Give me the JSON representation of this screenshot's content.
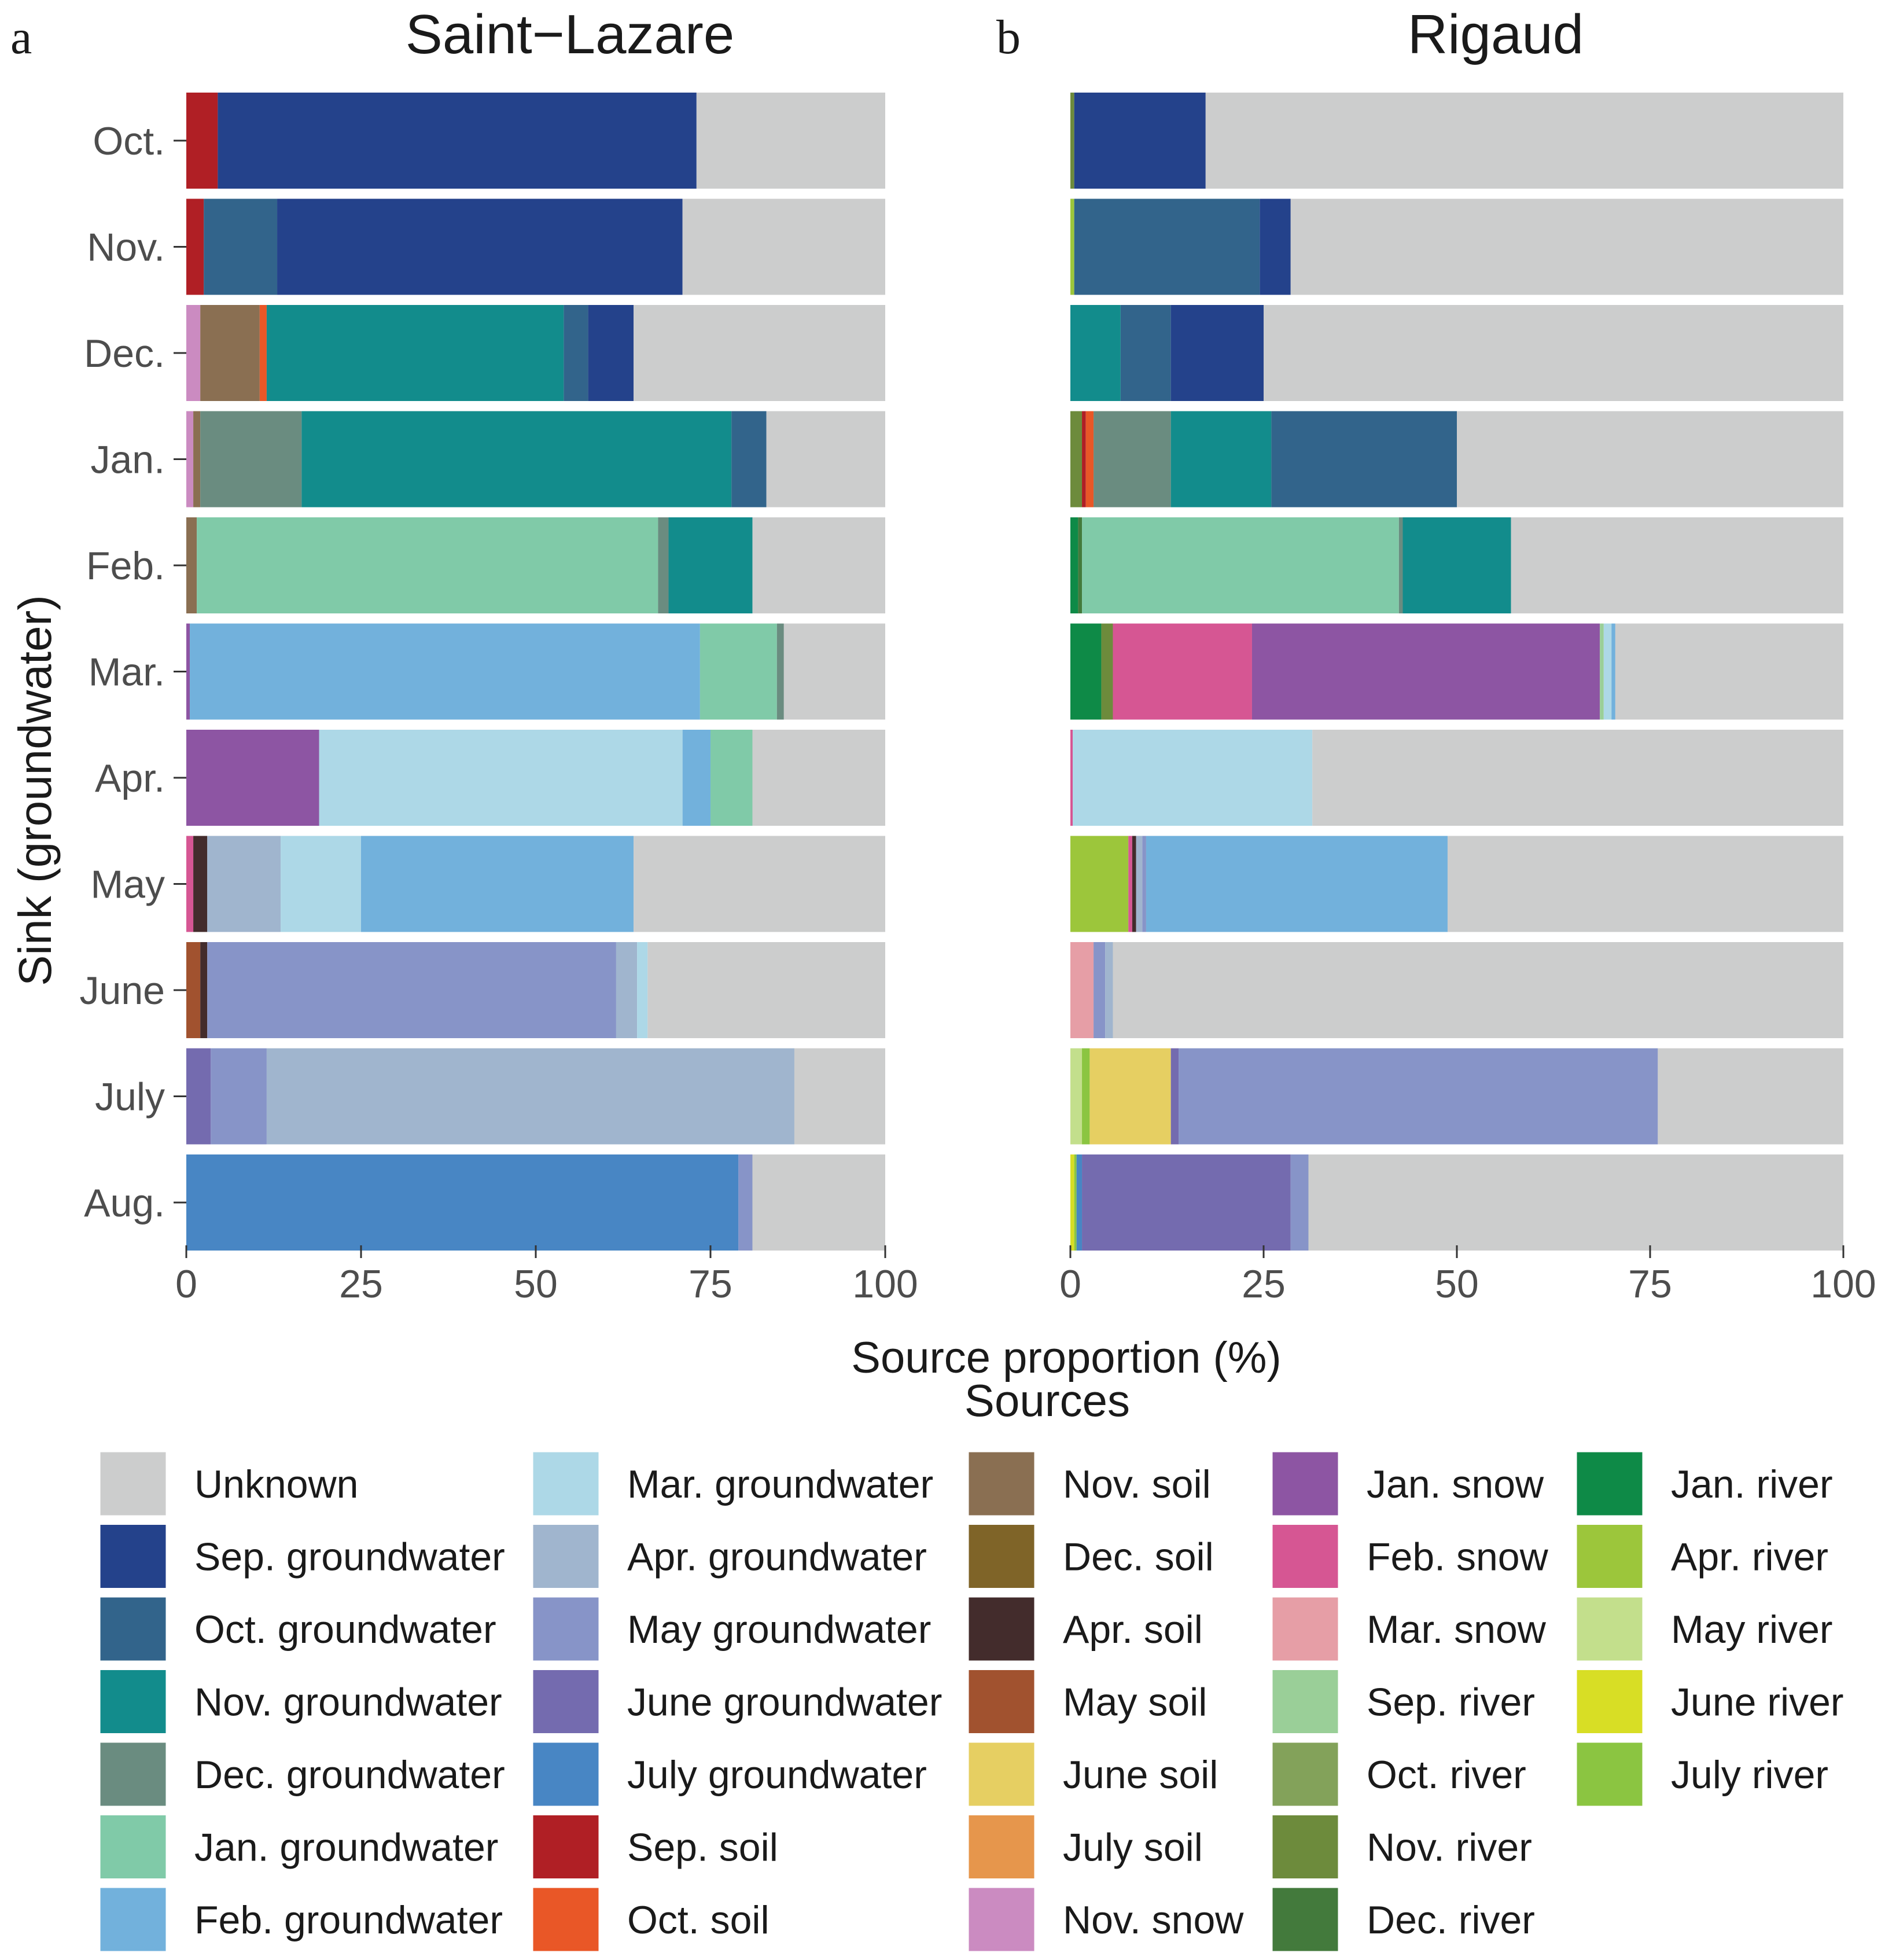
{
  "chart_data": {
    "type": "bar",
    "orientation": "horizontal",
    "stacked": true,
    "y_axis_label": "Sink (groundwater)",
    "x_axis_label": "Source proportion (%)",
    "xlim": [
      0,
      100
    ],
    "x_ticks": [
      "0",
      "25",
      "50",
      "75",
      "100"
    ],
    "categories": [
      "Oct.",
      "Nov.",
      "Dec.",
      "Jan.",
      "Feb.",
      "Mar.",
      "Apr.",
      "May",
      "June",
      "July",
      "Aug."
    ],
    "legend_title": "Sources",
    "legend_position": "bottom",
    "sources": [
      {
        "name": "Unknown",
        "color": "#CCCDCD"
      },
      {
        "name": "Sep. groundwater",
        "color": "#24428B"
      },
      {
        "name": "Oct. groundwater",
        "color": "#32648B"
      },
      {
        "name": "Nov. groundwater",
        "color": "#128C8C"
      },
      {
        "name": "Dec. groundwater",
        "color": "#6A8C80"
      },
      {
        "name": "Jan. groundwater",
        "color": "#80CAA8"
      },
      {
        "name": "Feb. groundwater",
        "color": "#72B1DC"
      },
      {
        "name": "Mar. groundwater",
        "color": "#ADD8E7"
      },
      {
        "name": "Apr. groundwater",
        "color": "#A0B5CE"
      },
      {
        "name": "May groundwater",
        "color": "#8794C8"
      },
      {
        "name": "June groundwater",
        "color": "#746BAF"
      },
      {
        "name": "July groundwater",
        "color": "#4886C4"
      },
      {
        "name": "Sep. soil",
        "color": "#B01F25"
      },
      {
        "name": "Oct. soil",
        "color": "#E95727"
      },
      {
        "name": "Nov. soil",
        "color": "#8A6F52"
      },
      {
        "name": "Dec. soil",
        "color": "#7F6428"
      },
      {
        "name": "Apr. soil",
        "color": "#432C2C"
      },
      {
        "name": "May soil",
        "color": "#A1522F"
      },
      {
        "name": "June soil",
        "color": "#E6CF62"
      },
      {
        "name": "July soil",
        "color": "#E6964C"
      },
      {
        "name": "Nov. snow",
        "color": "#CB8BC1"
      },
      {
        "name": "Jan. snow",
        "color": "#8D55A3"
      },
      {
        "name": "Feb. snow",
        "color": "#D65693"
      },
      {
        "name": "Mar. snow",
        "color": "#E69EA6"
      },
      {
        "name": "Sep. river",
        "color": "#9ACF98"
      },
      {
        "name": "Oct. river",
        "color": "#83A25A"
      },
      {
        "name": "Nov. river",
        "color": "#6D8B3C"
      },
      {
        "name": "Dec. river",
        "color": "#437A3C"
      },
      {
        "name": "Jan. river",
        "color": "#0E8A47"
      },
      {
        "name": "Apr. river",
        "color": "#9CC63B"
      },
      {
        "name": "May river",
        "color": "#C3DF8C"
      },
      {
        "name": "June river",
        "color": "#D8DE25"
      },
      {
        "name": "July river",
        "color": "#8BC541"
      }
    ],
    "panels": [
      {
        "letter": "a",
        "title": "Saint−Lazare",
        "bars": [
          [
            [
              "Sep. soil",
              4.5
            ],
            [
              "Sep. groundwater",
              68.5
            ],
            [
              "Unknown",
              27.0
            ]
          ],
          [
            [
              "Sep. soil",
              2.5
            ],
            [
              "Oct. groundwater",
              10.5
            ],
            [
              "Sep. groundwater",
              58.0
            ],
            [
              "Unknown",
              29.0
            ]
          ],
          [
            [
              "Nov. snow",
              2.0
            ],
            [
              "Nov. soil",
              8.5
            ],
            [
              "Oct. soil",
              1.0
            ],
            [
              "Nov. groundwater",
              42.5
            ],
            [
              "Oct. groundwater",
              3.5
            ],
            [
              "Sep. groundwater",
              6.5
            ],
            [
              "Unknown",
              36.0
            ]
          ],
          [
            [
              "Nov. snow",
              1.0
            ],
            [
              "Nov. soil",
              1.0
            ],
            [
              "Dec. groundwater",
              14.5
            ],
            [
              "Nov. groundwater",
              61.5
            ],
            [
              "Oct. groundwater",
              5.0
            ],
            [
              "Unknown",
              17.0
            ]
          ],
          [
            [
              "Nov. soil",
              1.5
            ],
            [
              "Jan. groundwater",
              66.0
            ],
            [
              "Dec. groundwater",
              1.5
            ],
            [
              "Nov. groundwater",
              12.0
            ],
            [
              "Unknown",
              19.0
            ]
          ],
          [
            [
              "Jan. snow",
              0.5
            ],
            [
              "Feb. groundwater",
              73.0
            ],
            [
              "Jan. groundwater",
              11.0
            ],
            [
              "Dec. groundwater",
              1.0
            ],
            [
              "Unknown",
              14.5
            ]
          ],
          [
            [
              "Jan. snow",
              19.0
            ],
            [
              "Mar. groundwater",
              52.0
            ],
            [
              "Feb. groundwater",
              4.0
            ],
            [
              "Jan. groundwater",
              6.0
            ],
            [
              "Unknown",
              19.0
            ]
          ],
          [
            [
              "Feb. snow",
              1.0
            ],
            [
              "Apr. soil",
              2.0
            ],
            [
              "Apr. groundwater",
              10.5
            ],
            [
              "Mar. groundwater",
              11.5
            ],
            [
              "Feb. groundwater",
              39.0
            ],
            [
              "Unknown",
              36.0
            ]
          ],
          [
            [
              "May soil",
              2.0
            ],
            [
              "Apr. soil",
              1.0
            ],
            [
              "May groundwater",
              58.5
            ],
            [
              "Apr. groundwater",
              3.0
            ],
            [
              "Mar. groundwater",
              1.5
            ],
            [
              "Unknown",
              34.0
            ]
          ],
          [
            [
              "June groundwater",
              3.5
            ],
            [
              "May groundwater",
              8.0
            ],
            [
              "Apr. groundwater",
              75.5
            ],
            [
              "Unknown",
              13.0
            ]
          ],
          [
            [
              "July groundwater",
              79.0
            ],
            [
              "May groundwater",
              2.0
            ],
            [
              "Unknown",
              19.0
            ]
          ]
        ]
      },
      {
        "letter": "b",
        "title": "Rigaud",
        "bars": [
          [
            [
              "Nov. river",
              0.5
            ],
            [
              "Sep. groundwater",
              17.0
            ],
            [
              "Unknown",
              82.5
            ]
          ],
          [
            [
              "Apr. river",
              0.5
            ],
            [
              "Oct. groundwater",
              24.0
            ],
            [
              "Sep. groundwater",
              4.0
            ],
            [
              "Unknown",
              71.5
            ]
          ],
          [
            [
              "Nov. groundwater",
              6.5
            ],
            [
              "Oct. groundwater",
              6.5
            ],
            [
              "Sep. groundwater",
              12.0
            ],
            [
              "Unknown",
              75.0
            ]
          ],
          [
            [
              "Nov. river",
              1.5
            ],
            [
              "Sep. soil",
              0.5
            ],
            [
              "Oct. soil",
              1.0
            ],
            [
              "Dec. groundwater",
              10.0
            ],
            [
              "Nov. groundwater",
              13.0
            ],
            [
              "Oct. groundwater",
              24.0
            ],
            [
              "Unknown",
              50.0
            ]
          ],
          [
            [
              "Jan. river",
              1.0
            ],
            [
              "Dec. river",
              0.5
            ],
            [
              "Jan. groundwater",
              41.0
            ],
            [
              "Dec. groundwater",
              0.5
            ],
            [
              "Nov. groundwater",
              14.0
            ],
            [
              "Unknown",
              43.0
            ]
          ],
          [
            [
              "Jan. river",
              4.0
            ],
            [
              "Nov. river",
              1.5
            ],
            [
              "Feb. snow",
              18.0
            ],
            [
              "Jan. snow",
              45.0
            ],
            [
              "Sep. river",
              0.5
            ],
            [
              "Mar. groundwater",
              1.0
            ],
            [
              "Feb. groundwater",
              0.5
            ],
            [
              "Unknown",
              29.5
            ]
          ],
          [
            [
              "Feb. snow",
              0.3
            ],
            [
              "Mar. groundwater",
              31.0
            ],
            [
              "Unknown",
              68.7
            ]
          ],
          [
            [
              "Apr. river",
              7.5
            ],
            [
              "Feb. snow",
              0.5
            ],
            [
              "Apr. soil",
              0.5
            ],
            [
              "Apr. groundwater",
              0.8
            ],
            [
              "May groundwater",
              0.5
            ],
            [
              "Feb. groundwater",
              39.0
            ],
            [
              "Unknown",
              51.2
            ]
          ],
          [
            [
              "Mar. snow",
              3.0
            ],
            [
              "May groundwater",
              1.5
            ],
            [
              "Apr. groundwater",
              1.0
            ],
            [
              "Unknown",
              94.5
            ]
          ],
          [
            [
              "May river",
              1.5
            ],
            [
              "July river",
              1.0
            ],
            [
              "June soil",
              10.5
            ],
            [
              "June groundwater",
              1.0
            ],
            [
              "May groundwater",
              62.0
            ],
            [
              "Unknown",
              24.0
            ]
          ],
          [
            [
              "June river",
              0.5
            ],
            [
              "July river",
              0.3
            ],
            [
              "July groundwater",
              0.7
            ],
            [
              "June groundwater",
              27.0
            ],
            [
              "May groundwater",
              2.3
            ],
            [
              "Unknown",
              69.2
            ]
          ]
        ]
      }
    ]
  }
}
